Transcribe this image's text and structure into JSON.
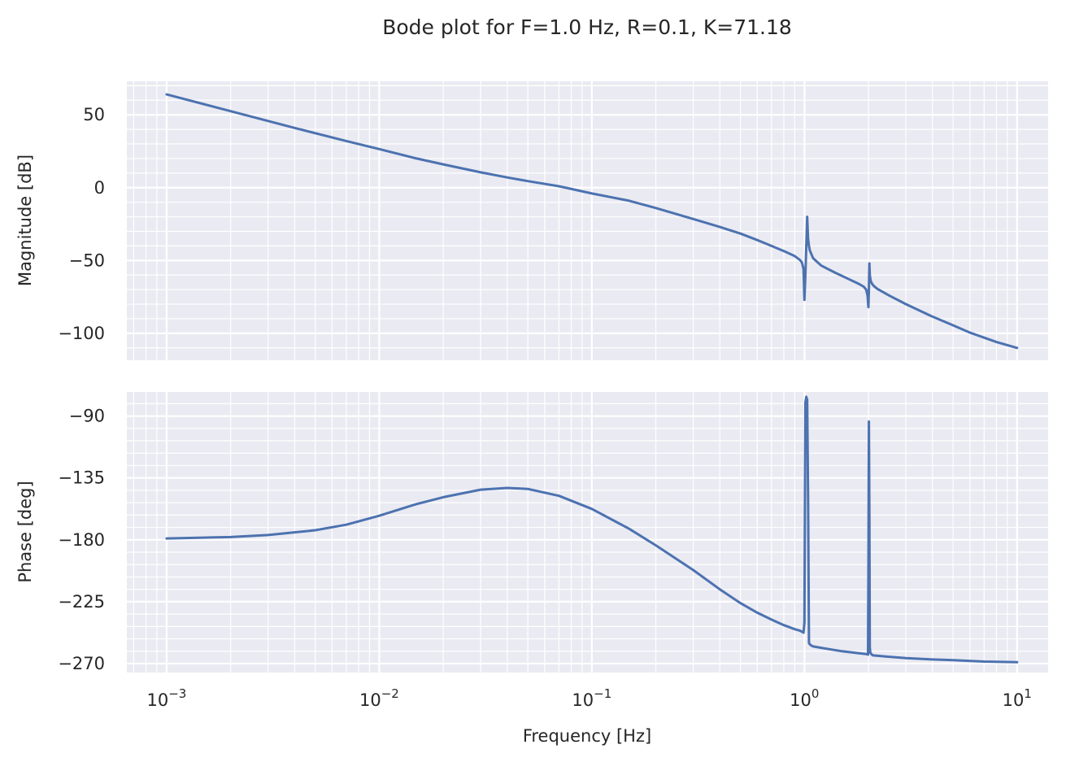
{
  "chart_data": {
    "type": "line",
    "title": "Bode plot for F=1.0 Hz, R=0.1, K=71.18",
    "xlabel": "Frequency [Hz]",
    "x_scale": "log",
    "xlim": [
      0.00065,
      14
    ],
    "x_ticks": [
      {
        "value": 0.001,
        "base": "10",
        "exp": "−3"
      },
      {
        "value": 0.01,
        "base": "10",
        "exp": "−2"
      },
      {
        "value": 0.1,
        "base": "10",
        "exp": "−1"
      },
      {
        "value": 1,
        "base": "10",
        "exp": "0"
      },
      {
        "value": 10,
        "base": "10",
        "exp": "1"
      }
    ],
    "grid": true,
    "line_color": "#4c72b0",
    "background_color": "#eaeaf2",
    "panels": [
      {
        "id": "magnitude",
        "ylabel": "Magnitude [dB]",
        "ylim": [
          -118.5,
          73
        ],
        "y_ticks": [
          {
            "value": 50,
            "label": "50"
          },
          {
            "value": 0,
            "label": "0"
          },
          {
            "value": -50,
            "label": "−50"
          },
          {
            "value": -100,
            "label": "−100"
          }
        ],
        "series": [
          {
            "x": [
              0.001,
              0.002,
              0.004,
              0.007,
              0.01,
              0.015,
              0.02,
              0.03,
              0.04,
              0.05,
              0.07,
              0.1,
              0.15,
              0.2,
              0.3,
              0.4,
              0.5,
              0.6,
              0.7,
              0.8,
              0.9,
              0.95,
              0.97,
              0.98,
              0.99,
              1.0,
              1.01,
              1.02,
              1.03,
              1.04,
              1.05,
              1.06,
              1.08,
              1.1,
              1.2,
              1.4,
              1.6,
              1.8,
              1.9,
              1.95,
              1.98,
              2.0,
              2.01,
              2.02,
              2.03,
              2.05,
              2.08,
              2.12,
              2.2,
              2.5,
              3,
              4,
              5,
              6,
              7,
              8,
              10
            ],
            "y": [
              64,
              52.5,
              41,
              32,
              26.5,
              20,
              16,
              10.5,
              7,
              4.5,
              1,
              -4,
              -9,
              -14,
              -21.5,
              -27,
              -31.5,
              -36,
              -40,
              -43.5,
              -47,
              -49.5,
              -51,
              -53,
              -56,
              -77,
              -60,
              -40,
              -20,
              -35,
              -40,
              -43,
              -46,
              -48.5,
              -53.5,
              -58.5,
              -62.5,
              -66,
              -68,
              -70,
              -74,
              -82,
              -70,
              -52,
              -60,
              -64,
              -66,
              -67.5,
              -69.5,
              -74,
              -80,
              -88.5,
              -94.5,
              -99.5,
              -103,
              -106,
              -110
            ]
          }
        ]
      },
      {
        "id": "phase",
        "ylabel": "Phase [deg]",
        "ylim": [
          -276.5,
          -72.5
        ],
        "y_ticks": [
          {
            "value": -90,
            "label": "−90"
          },
          {
            "value": -135,
            "label": "−135"
          },
          {
            "value": -180,
            "label": "−180"
          },
          {
            "value": -225,
            "label": "−225"
          },
          {
            "value": -270,
            "label": "−270"
          }
        ],
        "series": [
          {
            "x": [
              0.001,
              0.002,
              0.003,
              0.005,
              0.007,
              0.01,
              0.015,
              0.02,
              0.03,
              0.04,
              0.05,
              0.07,
              0.1,
              0.15,
              0.2,
              0.3,
              0.4,
              0.5,
              0.6,
              0.7,
              0.8,
              0.9,
              0.95,
              0.98,
              0.99,
              1.0,
              1.01,
              1.02,
              1.03,
              1.04,
              1.05,
              1.06,
              1.08,
              1.1,
              1.2,
              1.5,
              1.8,
              1.95,
              1.99,
              2.0,
              2.01,
              2.02,
              2.03,
              2.04,
              2.06,
              2.1,
              2.5,
              3,
              4,
              5,
              7,
              10
            ],
            "y": [
              -179,
              -178,
              -176.5,
              -173,
              -169,
              -162.5,
              -154,
              -149,
              -143.5,
              -142.3,
              -143,
              -148,
              -157.5,
              -172,
              -184,
              -202,
              -216,
              -226,
              -233,
              -238,
              -242,
              -245,
              -246,
              -247,
              -247.5,
              -240,
              -80,
              -76,
              -78,
              -150,
              -255,
              -256,
              -257,
              -257.5,
              -258.5,
              -261,
              -262.5,
              -263,
              -263.5,
              -200,
              -94,
              -160,
              -258,
              -262,
              -263,
              -264,
              -265,
              -266,
              -267,
              -267.5,
              -268.5,
              -269
            ]
          }
        ]
      }
    ]
  }
}
